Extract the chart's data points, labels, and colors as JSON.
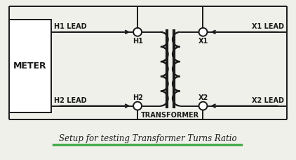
{
  "bg_color": "#f0f0eb",
  "line_color": "#1a1a1a",
  "title_text": "Setup for testing Transformer Turns Ratio",
  "title_color": "#1a1a1a",
  "underline_color": "#4caf50",
  "meter_label": "METER",
  "transformer_label": "TRANSFORMER",
  "h1_label": "H1",
  "h2_label": "H2",
  "x1_label": "X1",
  "x2_label": "X2",
  "h1_lead": "H1 LEAD",
  "h2_lead": "H2 LEAD",
  "x1_lead": "X1 LEAD",
  "x2_lead": "X2 LEAD",
  "figsize": [
    4.22,
    2.29
  ],
  "dpi": 100
}
